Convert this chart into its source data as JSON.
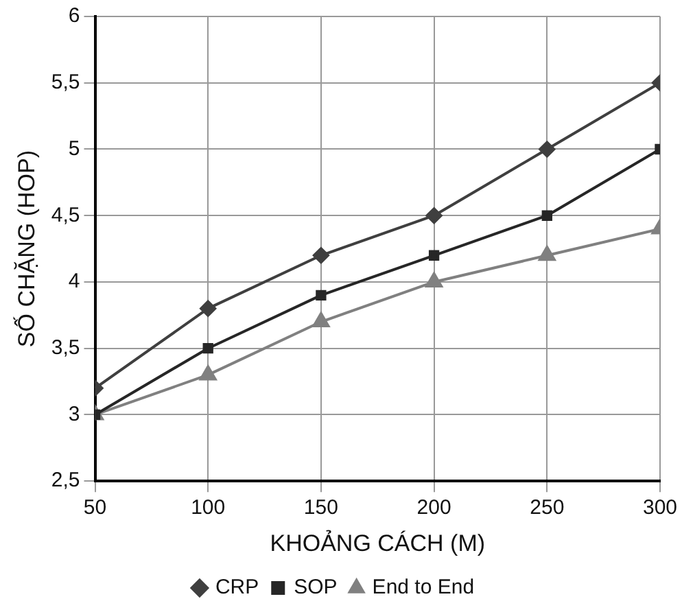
{
  "chart_data": {
    "type": "line",
    "xlabel": "KHOẢNG CÁCH (M)",
    "ylabel": "SỐ CHẶNG (HOP)",
    "x": [
      50,
      100,
      150,
      200,
      250,
      300
    ],
    "series": [
      {
        "name": "CRP",
        "color": "#3f3f3f",
        "marker": "diamond",
        "values": [
          3.2,
          3.8,
          4.2,
          4.5,
          5.0,
          5.5
        ]
      },
      {
        "name": "SOP",
        "color": "#262626",
        "marker": "square",
        "values": [
          3.0,
          3.5,
          3.9,
          4.2,
          4.5,
          5.0
        ]
      },
      {
        "name": "End to End",
        "color": "#808080",
        "marker": "triangle",
        "values": [
          3.0,
          3.3,
          3.7,
          4.0,
          4.2,
          4.4
        ]
      }
    ],
    "xlim": [
      50,
      300
    ],
    "xticks": [
      50,
      100,
      150,
      200,
      250,
      300
    ],
    "ylim": [
      2.5,
      6
    ],
    "yticks": [
      {
        "value": 2.5,
        "label": "2,5"
      },
      3,
      {
        "value": 3.5,
        "label": "3,5"
      },
      4,
      {
        "value": 4.5,
        "label": "4,5"
      },
      5,
      {
        "value": 5.5,
        "label": "5,5"
      },
      6
    ],
    "grid": true,
    "legend": "bottom",
    "line_style": "solid"
  }
}
